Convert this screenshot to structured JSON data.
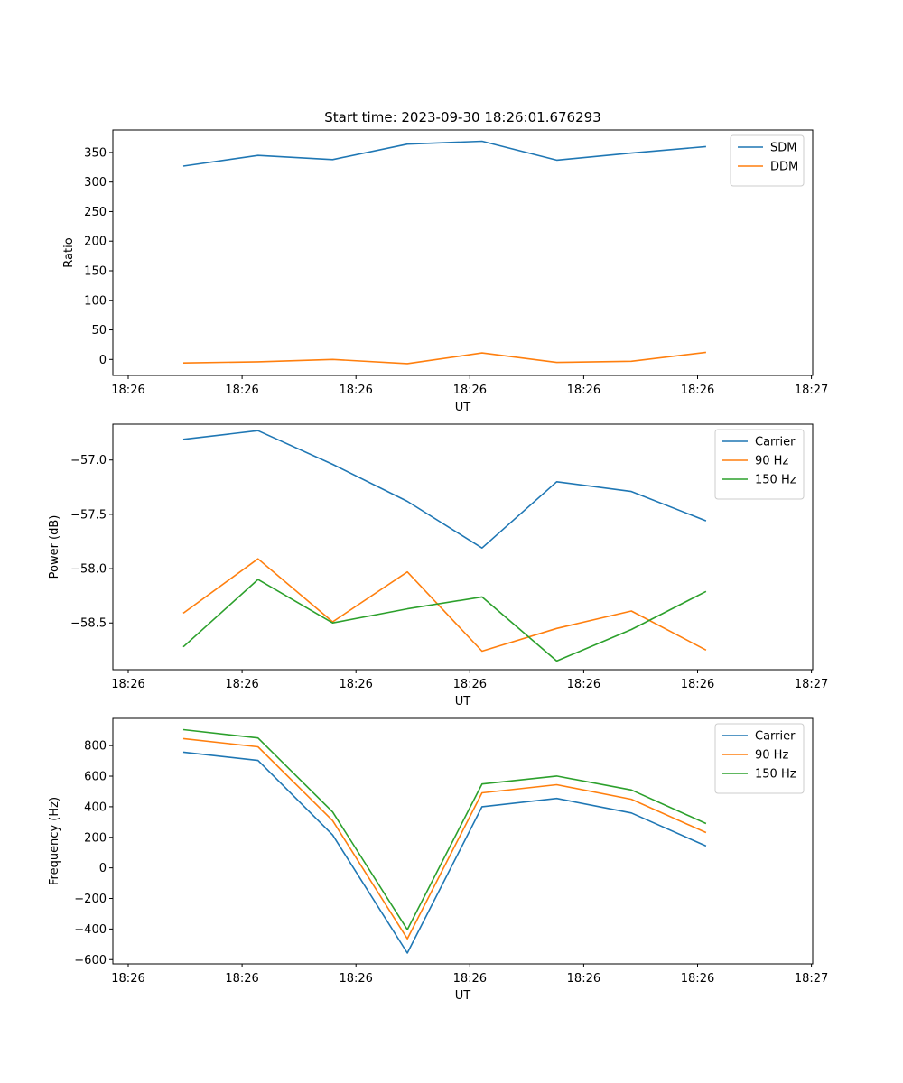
{
  "chart_data": [
    {
      "type": "line",
      "title": "Start time: 2023-09-30 18:26:01.676293",
      "xlabel": "UT",
      "ylabel": "Ratio",
      "ylim": [
        -27,
        388
      ],
      "yticks": [
        0,
        50,
        100,
        150,
        200,
        250,
        300,
        350
      ],
      "xticks": [
        "18:26",
        "18:26",
        "18:26",
        "18:26",
        "18:26",
        "18:26",
        "18:27"
      ],
      "legend_position": "top-right",
      "series": [
        {
          "name": "SDM",
          "color": "#1f77b4",
          "values": [
            327,
            345,
            338,
            364,
            369,
            337,
            349,
            360
          ]
        },
        {
          "name": "DDM",
          "color": "#ff7f0e",
          "values": [
            -6,
            -4,
            0,
            -7,
            11,
            -5,
            -3,
            12
          ]
        }
      ]
    },
    {
      "type": "line",
      "title": "",
      "xlabel": "UT",
      "ylabel": "Power (dB)",
      "ylim": [
        -58.93,
        -56.67
      ],
      "yticks": [
        -58.5,
        -58.0,
        -57.5,
        -57.0
      ],
      "xticks": [
        "18:26",
        "18:26",
        "18:26",
        "18:26",
        "18:26",
        "18:26",
        "18:27"
      ],
      "legend_position": "top-right",
      "series": [
        {
          "name": "Carrier",
          "color": "#1f77b4",
          "values": [
            -56.81,
            -56.73,
            -57.04,
            -57.38,
            -57.81,
            -57.2,
            -57.29,
            -57.56
          ]
        },
        {
          "name": "90 Hz",
          "color": "#ff7f0e",
          "values": [
            -58.41,
            -57.91,
            -58.49,
            -58.03,
            -58.76,
            -58.55,
            -58.39,
            -58.75
          ]
        },
        {
          "name": "150 Hz",
          "color": "#2ca02c",
          "values": [
            -58.72,
            -58.1,
            -58.5,
            -58.37,
            -58.26,
            -58.85,
            -58.56,
            -58.21
          ]
        }
      ]
    },
    {
      "type": "line",
      "title": "",
      "xlabel": "UT",
      "ylabel": "Frequency (Hz)",
      "ylim": [
        -628,
        978
      ],
      "yticks": [
        -600,
        -400,
        -200,
        0,
        200,
        400,
        600,
        800
      ],
      "xticks": [
        "18:26",
        "18:26",
        "18:26",
        "18:26",
        "18:26",
        "18:26",
        "18:27"
      ],
      "legend_position": "top-right",
      "series": [
        {
          "name": "Carrier",
          "color": "#1f77b4",
          "values": [
            757,
            703,
            215,
            -557,
            400,
            454,
            359,
            143
          ]
        },
        {
          "name": "90 Hz",
          "color": "#ff7f0e",
          "values": [
            846,
            792,
            309,
            -464,
            491,
            544,
            449,
            231
          ]
        },
        {
          "name": "150 Hz",
          "color": "#2ca02c",
          "values": [
            904,
            850,
            366,
            -404,
            549,
            601,
            510,
            290
          ]
        }
      ]
    }
  ]
}
